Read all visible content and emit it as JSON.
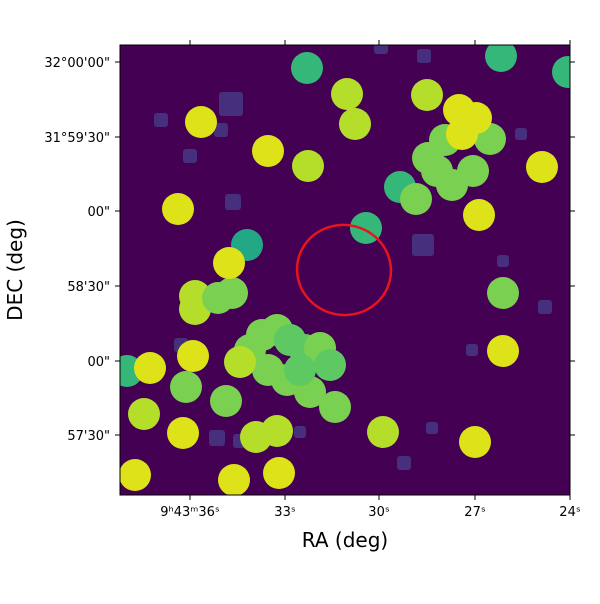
{
  "chart_data": {
    "type": "image",
    "xlabel": "RA (deg)",
    "ylabel": "DEC (deg)",
    "xtick_labels": [
      "9ʰ43ᵐ36ˢ",
      "33ˢ",
      "30ˢ",
      "27ˢ",
      "24ˢ"
    ],
    "ytick_labels": [
      "32°00'00\"",
      "31°59'30\"",
      "00\"",
      "58'30\"",
      "00\"",
      "57'30\""
    ]
  }
}
